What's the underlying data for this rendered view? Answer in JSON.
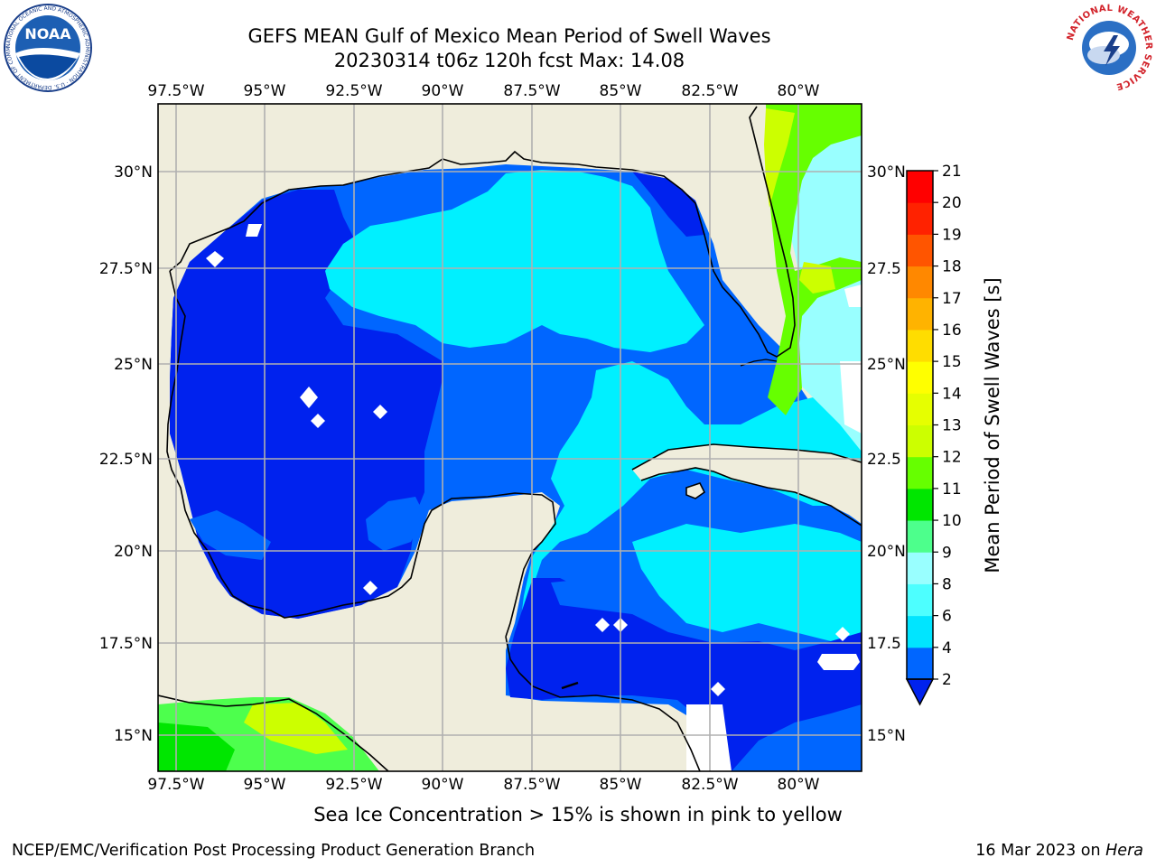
{
  "header": {
    "title_line1": "GEFS MEAN Gulf of Mexico Mean Period of Swell Waves",
    "title_line2": "20230314 t06z 120h fcst   Max: 14.08"
  },
  "logos": {
    "left": {
      "name": "noaa-logo",
      "text": "NOAA",
      "ring_text": "NATIONAL OCEANIC AND ATMOSPHERIC ADMINISTRATION · U.S. DEPARTMENT OF COMMERCE"
    },
    "right": {
      "name": "nws-logo",
      "ring_text": "NATIONAL WEATHER SERVICE"
    }
  },
  "map": {
    "lon_labels": [
      "97.5°W",
      "95°W",
      "92.5°W",
      "90°W",
      "87.5°W",
      "85°W",
      "82.5°W",
      "80°W"
    ],
    "lat_labels_left": [
      "30°N",
      "27.5°N",
      "25°N",
      "22.5°N",
      "20°N",
      "17.5°N",
      "15°N"
    ],
    "lat_labels_right": [
      "30°N",
      "27.5",
      "25°N",
      "22.5",
      "20°N",
      "17.5",
      "15°N"
    ],
    "land_color": "#efeddc",
    "grid_color": "#b0b0b0"
  },
  "colorbar": {
    "label": "Mean Period of Swell Waves [s]",
    "ticks": [
      "2",
      "4",
      "6",
      "8",
      "9",
      "10",
      "11",
      "12",
      "13",
      "14",
      "15",
      "16",
      "17",
      "18",
      "19",
      "20",
      "21"
    ],
    "colors": [
      "#0066ff",
      "#00e5ff",
      "#4dffff",
      "#99ffff",
      "#4dff8c",
      "#00e600",
      "#66ff00",
      "#ccff00",
      "#e6ff00",
      "#ffff00",
      "#ffdd00",
      "#ffb300",
      "#ff8800",
      "#ff5500",
      "#ff2200",
      "#ff0000"
    ],
    "extend_color": "#0022ee"
  },
  "notes": {
    "sea_ice": "Sea Ice Concentration > 15% is shown in pink to yellow"
  },
  "footer": {
    "left": "NCEP/EMC/Verification Post Processing Product Generation Branch",
    "right_date": "16 Mar 2023 on ",
    "right_host": "Hera"
  }
}
